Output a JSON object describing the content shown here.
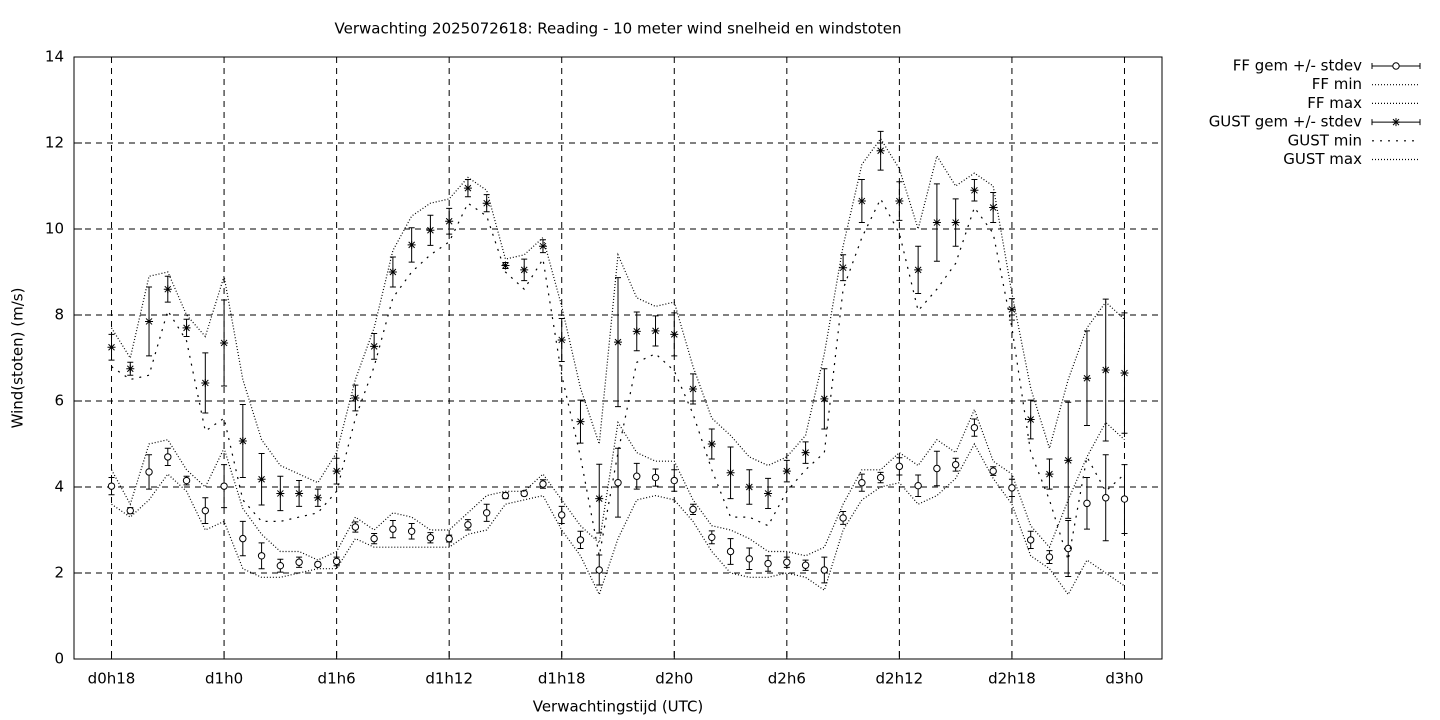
{
  "chart_data": {
    "type": "errorbar",
    "title": "Verwachting 2025072618: Reading - 10 meter wind snelheid en windstoten",
    "x_label": "Verwachtingstijd (UTC)",
    "y_label": "Wind(stoten) (m/s)",
    "x": [
      18,
      19,
      20,
      21,
      22,
      23,
      24,
      25,
      26,
      27,
      28,
      29,
      30,
      31,
      32,
      33,
      34,
      35,
      36,
      37,
      38,
      39,
      40,
      41,
      42,
      43,
      44,
      45,
      46,
      47,
      48,
      49,
      50,
      51,
      52,
      53,
      54,
      55,
      56,
      57,
      58,
      59,
      60,
      61,
      62,
      63,
      64,
      65,
      66,
      67,
      68,
      69,
      70,
      71,
      72
    ],
    "xlim": [
      16,
      74
    ],
    "xticks": [
      {
        "value": 18,
        "label": "d0h18"
      },
      {
        "value": 24,
        "label": "d1h0"
      },
      {
        "value": 30,
        "label": "d1h6"
      },
      {
        "value": 36,
        "label": "d1h12"
      },
      {
        "value": 42,
        "label": "d1h18"
      },
      {
        "value": 48,
        "label": "d2h0"
      },
      {
        "value": 54,
        "label": "d2h6"
      },
      {
        "value": 60,
        "label": "d2h12"
      },
      {
        "value": 66,
        "label": "d2h18"
      },
      {
        "value": 72,
        "label": "d3h0"
      }
    ],
    "ylim": [
      0,
      14
    ],
    "yticks": [
      0,
      2,
      4,
      6,
      8,
      10,
      12,
      14
    ],
    "grid": true,
    "legend": "outside-top-right",
    "series": [
      {
        "name": "FF gem +/- stdev",
        "color": "#000000",
        "marker": "circle",
        "style": "errorbars",
        "values": [
          4.02,
          3.45,
          4.35,
          4.7,
          4.15,
          3.45,
          4.02,
          2.8,
          2.4,
          2.17,
          2.25,
          2.2,
          2.27,
          3.07,
          2.8,
          3.02,
          2.97,
          2.82,
          2.8,
          3.12,
          3.4,
          3.8,
          3.85,
          4.07,
          3.35,
          2.77,
          2.07,
          4.1,
          4.25,
          4.22,
          4.15,
          3.48,
          2.83,
          2.5,
          2.33,
          2.22,
          2.25,
          2.18,
          2.07,
          3.28,
          4.1,
          4.22,
          4.48,
          4.03,
          4.43,
          4.52,
          5.38,
          4.37,
          3.98,
          2.77,
          2.37,
          2.57,
          3.62,
          3.75,
          3.72
        ],
        "errors": [
          0.2,
          0.07,
          0.4,
          0.2,
          0.1,
          0.3,
          0.5,
          0.4,
          0.3,
          0.15,
          0.12,
          0.05,
          0.1,
          0.12,
          0.12,
          0.2,
          0.18,
          0.12,
          0.08,
          0.12,
          0.2,
          0.07,
          0.05,
          0.1,
          0.2,
          0.2,
          0.35,
          0.8,
          0.3,
          0.2,
          0.25,
          0.12,
          0.15,
          0.3,
          0.25,
          0.18,
          0.12,
          0.12,
          0.3,
          0.15,
          0.2,
          0.12,
          0.2,
          0.25,
          0.4,
          0.15,
          0.2,
          0.1,
          0.2,
          0.2,
          0.15,
          0.65,
          0.6,
          1.0,
          0.8
        ]
      },
      {
        "name": "FF min",
        "color": "#000000",
        "style": "dotted-fine",
        "values": [
          3.6,
          3.3,
          3.7,
          4.3,
          3.9,
          3.0,
          3.2,
          2.1,
          1.9,
          1.9,
          2.0,
          2.1,
          2.1,
          2.8,
          2.6,
          2.6,
          2.6,
          2.6,
          2.6,
          2.9,
          3.0,
          3.6,
          3.7,
          3.8,
          3.0,
          2.4,
          1.5,
          2.8,
          3.7,
          3.8,
          3.7,
          3.2,
          2.5,
          2.0,
          1.9,
          1.9,
          2.0,
          1.9,
          1.6,
          3.0,
          3.7,
          4.0,
          4.1,
          3.6,
          3.8,
          4.2,
          5.0,
          4.2,
          3.6,
          2.4,
          2.1,
          1.5,
          2.3,
          2.0,
          1.7
        ]
      },
      {
        "name": "FF max",
        "color": "#000000",
        "style": "dotted-fine",
        "values": [
          4.4,
          3.6,
          5.0,
          5.1,
          4.4,
          4.0,
          4.9,
          3.5,
          2.9,
          2.5,
          2.5,
          2.3,
          2.5,
          3.3,
          3.0,
          3.4,
          3.3,
          3.0,
          3.0,
          3.4,
          3.8,
          3.9,
          3.9,
          4.3,
          3.7,
          3.1,
          2.7,
          5.5,
          4.8,
          4.6,
          4.6,
          3.7,
          3.1,
          3.0,
          2.8,
          2.5,
          2.5,
          2.4,
          2.6,
          3.6,
          4.4,
          4.4,
          4.8,
          4.5,
          5.1,
          4.8,
          5.8,
          4.6,
          4.3,
          3.1,
          2.6,
          3.7,
          4.7,
          5.5,
          5.1
        ]
      },
      {
        "name": "GUST gem +/- stdev",
        "color": "#000000",
        "marker": "star",
        "style": "errorbars",
        "values": [
          7.25,
          6.75,
          7.85,
          8.6,
          7.7,
          6.42,
          7.35,
          5.07,
          4.18,
          3.85,
          3.85,
          3.75,
          4.37,
          6.07,
          7.27,
          9.0,
          9.63,
          9.97,
          10.18,
          10.95,
          10.6,
          9.15,
          9.05,
          9.6,
          7.42,
          5.52,
          3.73,
          7.37,
          7.62,
          7.63,
          7.55,
          6.28,
          5.0,
          4.33,
          4.0,
          3.85,
          4.37,
          4.8,
          6.05,
          9.1,
          10.65,
          11.82,
          10.65,
          9.05,
          10.15,
          10.15,
          10.9,
          10.5,
          8.13,
          5.57,
          4.3,
          4.62,
          6.53,
          6.72,
          6.65
        ],
        "errors": [
          0.3,
          0.15,
          0.8,
          0.3,
          0.2,
          0.7,
          1.0,
          0.85,
          0.6,
          0.4,
          0.3,
          0.2,
          0.3,
          0.3,
          0.3,
          0.35,
          0.4,
          0.35,
          0.3,
          0.2,
          0.2,
          0.07,
          0.25,
          0.15,
          0.5,
          0.5,
          0.8,
          1.5,
          0.45,
          0.35,
          0.5,
          0.35,
          0.35,
          0.6,
          0.4,
          0.35,
          0.25,
          0.25,
          0.7,
          0.3,
          0.5,
          0.45,
          0.45,
          0.55,
          0.9,
          0.55,
          0.25,
          0.35,
          0.25,
          0.45,
          0.35,
          1.35,
          1.1,
          1.65,
          1.4
        ]
      },
      {
        "name": "GUST min",
        "color": "#000000",
        "style": "dotted-coarse",
        "values": [
          6.8,
          6.5,
          6.6,
          8.1,
          7.4,
          5.3,
          5.6,
          3.7,
          3.2,
          3.2,
          3.3,
          3.4,
          3.9,
          5.6,
          6.8,
          8.4,
          9.0,
          9.4,
          9.7,
          10.6,
          10.3,
          9.0,
          8.6,
          9.3,
          6.6,
          4.7,
          2.4,
          4.8,
          6.9,
          7.1,
          6.7,
          5.7,
          4.4,
          3.3,
          3.3,
          3.1,
          3.9,
          4.4,
          4.8,
          8.6,
          9.8,
          10.7,
          9.9,
          8.1,
          8.6,
          9.2,
          10.5,
          9.9,
          7.7,
          4.8,
          3.7,
          2.3,
          4.7,
          3.9,
          4.3
        ]
      },
      {
        "name": "GUST max",
        "color": "#000000",
        "style": "dotted-fine",
        "values": [
          7.7,
          7.0,
          8.9,
          9.0,
          8.0,
          7.5,
          8.9,
          6.5,
          5.1,
          4.5,
          4.3,
          4.1,
          4.8,
          6.5,
          7.7,
          9.5,
          10.3,
          10.6,
          10.7,
          11.2,
          10.9,
          9.3,
          9.4,
          9.8,
          8.2,
          6.3,
          5.0,
          9.4,
          8.4,
          8.2,
          8.3,
          6.8,
          5.6,
          5.2,
          4.7,
          4.5,
          4.7,
          5.2,
          7.1,
          9.6,
          11.5,
          12.1,
          11.4,
          10.0,
          11.7,
          11.0,
          11.3,
          11.0,
          8.5,
          6.3,
          4.9,
          6.5,
          7.7,
          8.3,
          7.9
        ]
      }
    ]
  }
}
